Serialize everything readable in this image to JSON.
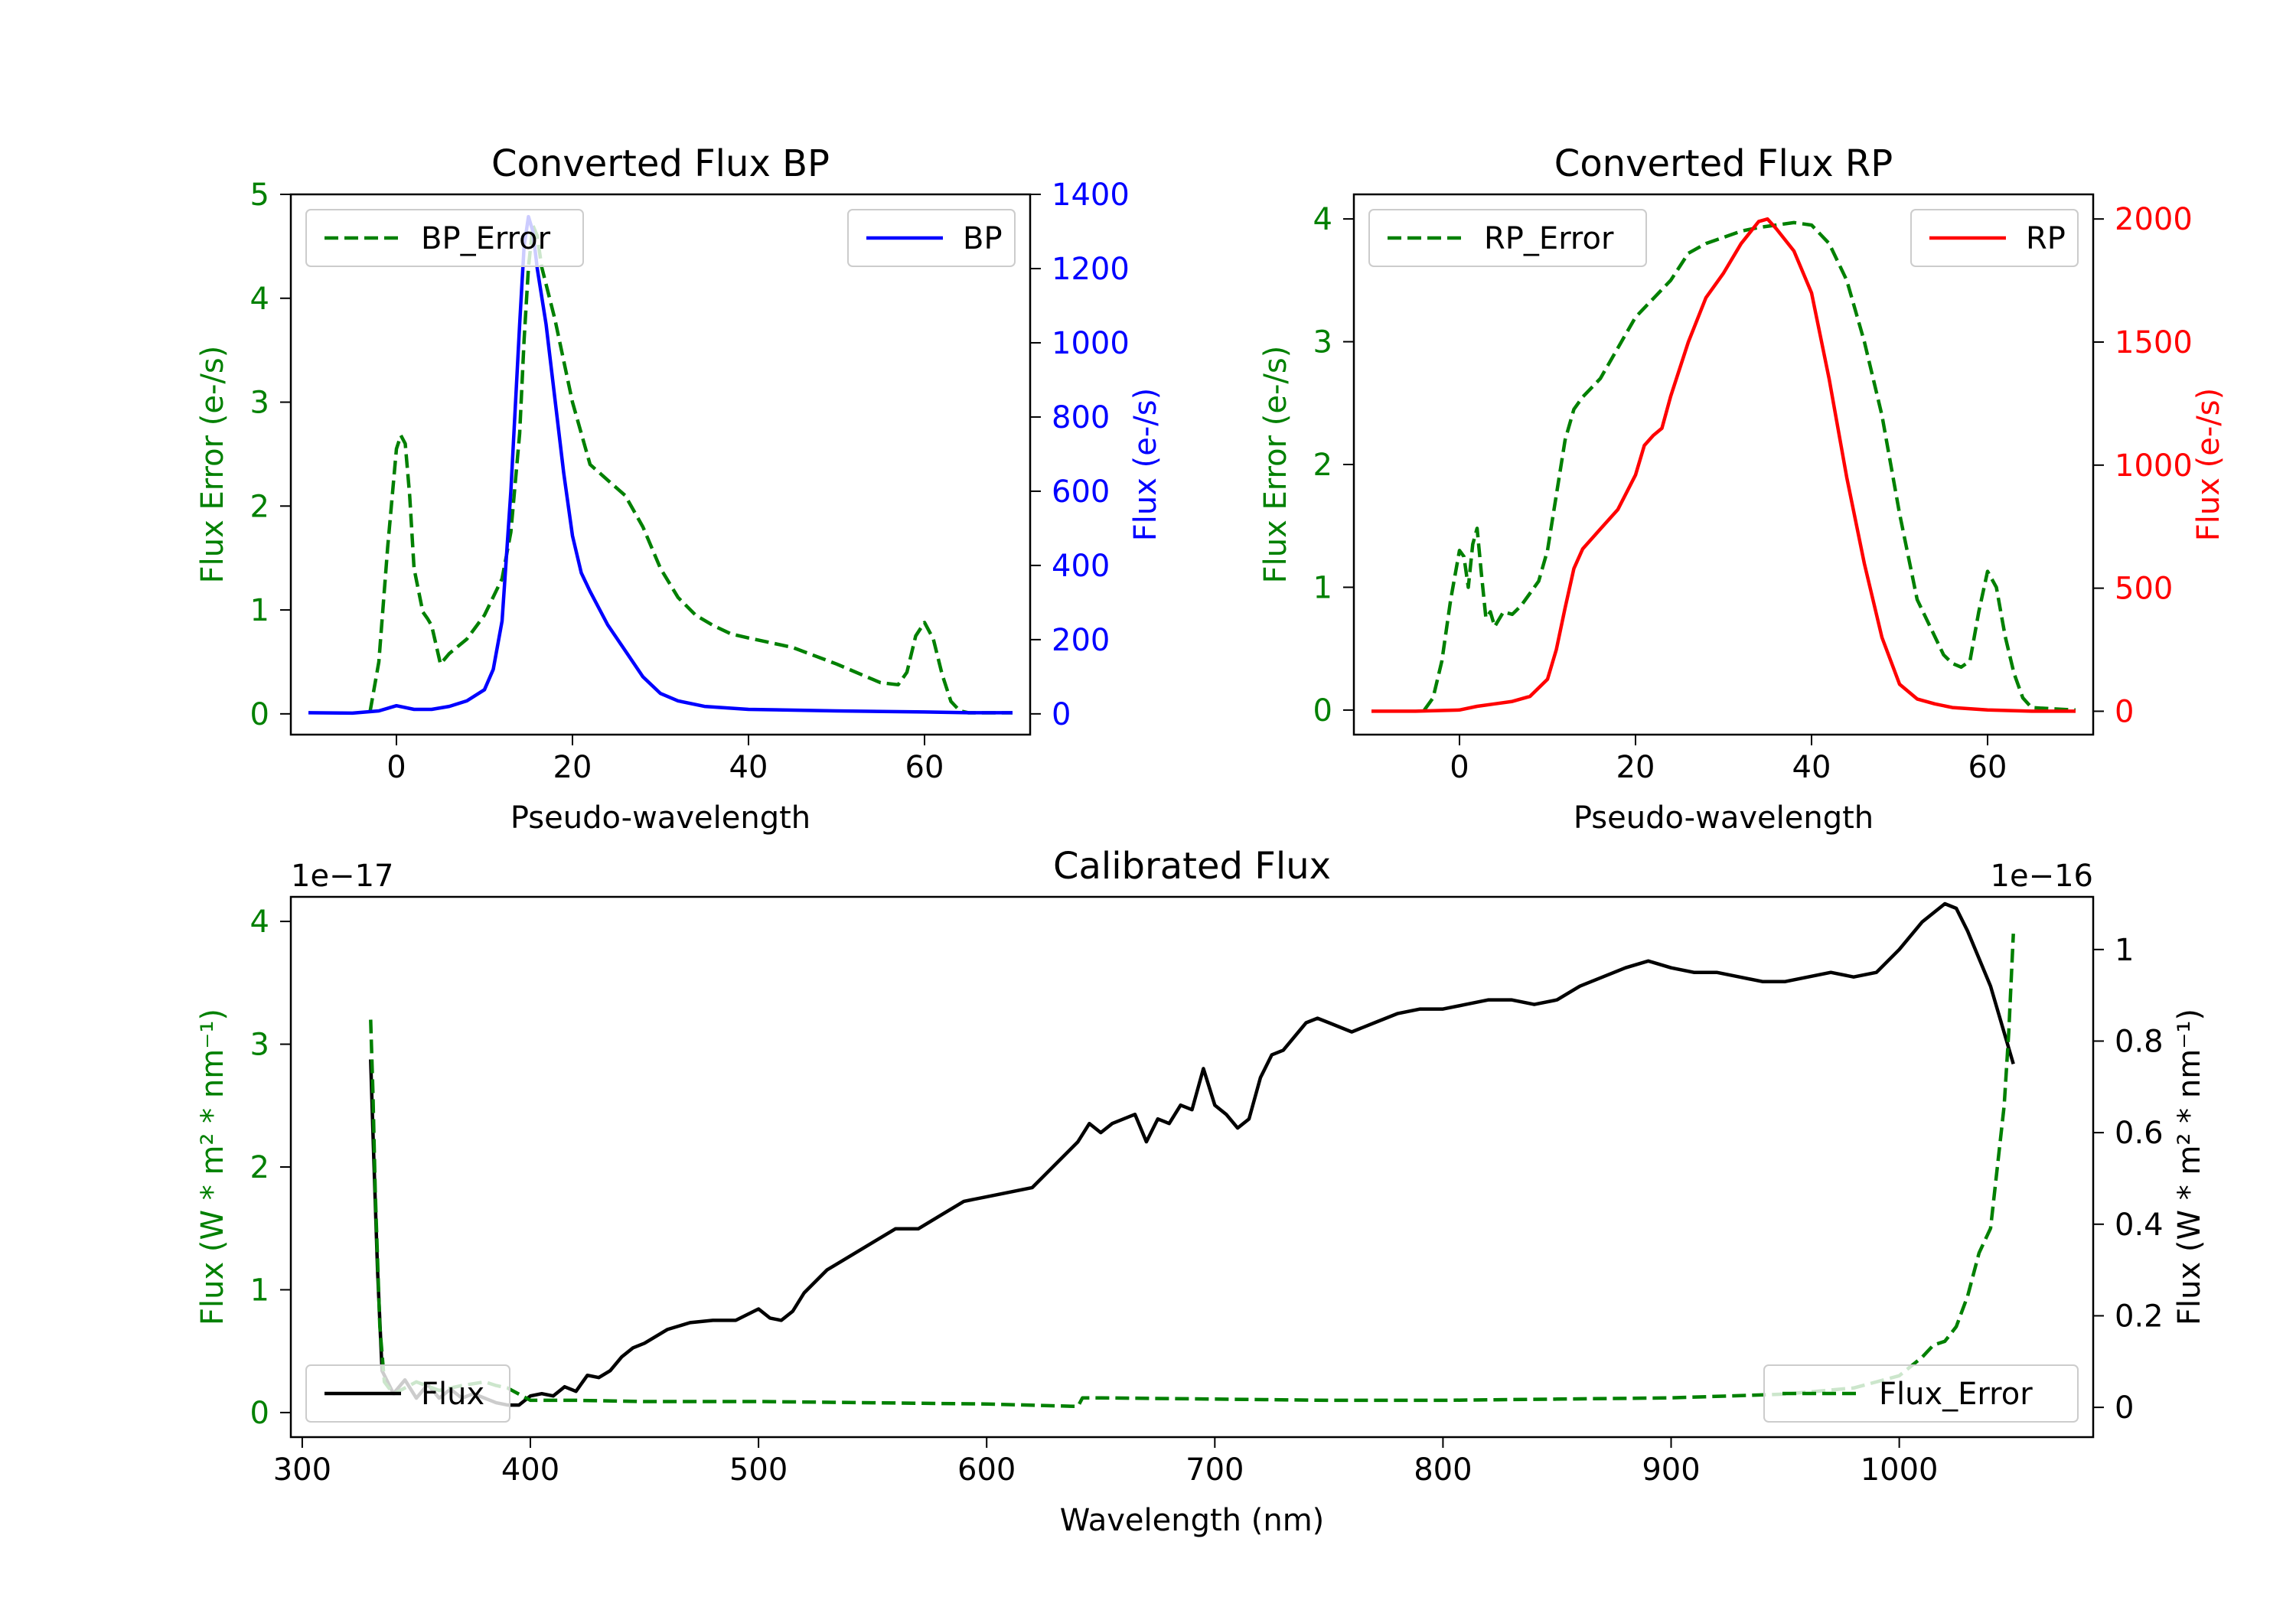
{
  "colors": {
    "green": "#008000",
    "blue": "#0000ff",
    "red": "#ff0000",
    "black": "#000000"
  },
  "chart_data": [
    {
      "type": "line",
      "title": "Converted Flux BP",
      "xlabel": "Pseudo-wavelength",
      "xlim": [
        -12,
        72
      ],
      "xticks": [
        0,
        20,
        40,
        60
      ],
      "left_axis": {
        "label": "Flux Error (e-/s)",
        "lim": [
          -0.2,
          5.0
        ],
        "ticks": [
          0,
          1,
          2,
          3,
          4,
          5
        ],
        "color": "#008000"
      },
      "right_axis": {
        "label": "Flux (e-/s)",
        "lim": [
          -56,
          1400
        ],
        "ticks": [
          0,
          200,
          400,
          600,
          800,
          1000,
          1200,
          1400
        ],
        "color": "#0000ff"
      },
      "legend_left": "BP_Error",
      "legend_right": "BP",
      "series": [
        {
          "name": "BP_Error",
          "axis": "left",
          "style": "dashed",
          "color": "#008000",
          "x": [
            -3,
            -2,
            -1,
            0,
            0.5,
            1,
            1.5,
            2,
            3,
            3.5,
            4,
            5,
            6,
            8,
            10,
            12,
            13,
            14,
            14.5,
            15,
            15.5,
            16,
            16.5,
            18,
            20,
            22,
            24,
            26,
            28,
            30,
            32,
            34,
            36,
            38,
            40,
            45,
            50,
            55,
            57,
            58,
            59,
            60,
            61,
            62,
            63,
            64,
            65,
            70
          ],
          "y": [
            0.02,
            0.5,
            1.6,
            2.55,
            2.68,
            2.6,
            2.1,
            1.4,
            0.98,
            0.92,
            0.85,
            0.48,
            0.58,
            0.72,
            0.95,
            1.3,
            1.75,
            2.7,
            3.6,
            4.3,
            4.7,
            4.6,
            4.3,
            3.8,
            3.0,
            2.4,
            2.25,
            2.1,
            1.8,
            1.4,
            1.12,
            0.95,
            0.85,
            0.77,
            0.73,
            0.64,
            0.48,
            0.3,
            0.28,
            0.4,
            0.75,
            0.88,
            0.72,
            0.38,
            0.12,
            0.03,
            0.01,
            0.01
          ]
        },
        {
          "name": "BP",
          "axis": "right",
          "style": "solid",
          "color": "#0000ff",
          "x": [
            -10,
            -5,
            -2,
            0,
            2,
            4,
            6,
            8,
            10,
            11,
            12,
            13,
            14,
            14.5,
            15,
            15.5,
            16,
            17,
            18,
            19,
            20,
            21,
            22,
            24,
            26,
            28,
            30,
            32,
            35,
            40,
            50,
            60,
            65,
            70
          ],
          "y": [
            3,
            2,
            8,
            22,
            12,
            12,
            20,
            35,
            65,
            120,
            250,
            600,
            1050,
            1260,
            1340,
            1300,
            1200,
            1050,
            850,
            650,
            480,
            380,
            330,
            240,
            170,
            100,
            55,
            35,
            20,
            12,
            8,
            5,
            3,
            3
          ]
        }
      ]
    },
    {
      "type": "line",
      "title": "Converted Flux RP",
      "xlabel": "Pseudo-wavelength",
      "xlim": [
        -12,
        72
      ],
      "xticks": [
        0,
        20,
        40,
        60
      ],
      "left_axis": {
        "label": "Flux Error (e-/s)",
        "lim": [
          -0.2,
          4.2
        ],
        "ticks": [
          0,
          1,
          2,
          3,
          4
        ],
        "color": "#008000"
      },
      "right_axis": {
        "label": "Flux (e-/s)",
        "lim": [
          -95,
          2100
        ],
        "ticks": [
          0,
          500,
          1000,
          1500,
          2000
        ],
        "color": "#ff0000"
      },
      "legend_left": "RP_Error",
      "legend_right": "RP",
      "series": [
        {
          "name": "RP_Error",
          "axis": "left",
          "style": "dashed",
          "color": "#008000",
          "x": [
            -4,
            -3,
            -2,
            -1,
            0,
            0.5,
            1,
            1.5,
            2,
            2.5,
            3,
            3.5,
            4,
            5,
            6,
            7,
            8,
            9,
            10,
            11,
            12,
            13,
            14,
            16,
            18,
            20,
            22,
            24,
            26,
            28,
            30,
            32,
            34,
            36,
            38,
            40,
            42,
            44,
            46,
            48,
            50,
            52,
            54,
            55,
            56,
            57,
            58,
            59,
            60,
            61,
            62,
            63,
            64,
            65,
            70
          ],
          "y": [
            0,
            0.1,
            0.4,
            0.9,
            1.3,
            1.25,
            1.0,
            1.35,
            1.48,
            1.1,
            0.75,
            0.8,
            0.68,
            0.8,
            0.78,
            0.85,
            0.95,
            1.05,
            1.3,
            1.75,
            2.2,
            2.45,
            2.55,
            2.7,
            2.95,
            3.2,
            3.35,
            3.5,
            3.72,
            3.8,
            3.85,
            3.9,
            3.93,
            3.95,
            3.97,
            3.95,
            3.8,
            3.5,
            3.0,
            2.4,
            1.6,
            0.9,
            0.6,
            0.45,
            0.38,
            0.35,
            0.4,
            0.8,
            1.13,
            1.0,
            0.6,
            0.3,
            0.1,
            0.02,
            0
          ]
        },
        {
          "name": "RP",
          "axis": "right",
          "style": "solid",
          "color": "#ff0000",
          "x": [
            -10,
            -5,
            0,
            2,
            4,
            6,
            8,
            10,
            11,
            12,
            13,
            14,
            16,
            18,
            20,
            21,
            22,
            23,
            24,
            26,
            28,
            30,
            32,
            34,
            35,
            36,
            38,
            40,
            42,
            44,
            46,
            48,
            50,
            52,
            54,
            56,
            60,
            65,
            70
          ],
          "y": [
            0,
            0,
            5,
            20,
            30,
            40,
            60,
            130,
            250,
            420,
            580,
            660,
            740,
            820,
            960,
            1080,
            1120,
            1150,
            1280,
            1500,
            1680,
            1780,
            1900,
            1990,
            2000,
            1960,
            1870,
            1700,
            1350,
            950,
            600,
            300,
            110,
            50,
            30,
            15,
            5,
            0,
            0
          ]
        }
      ]
    },
    {
      "type": "line",
      "title": "Calibrated Flux",
      "xlabel": "Wavelength (nm)",
      "xlim": [
        295,
        1085
      ],
      "xticks": [
        300,
        400,
        500,
        600,
        700,
        800,
        900,
        1000
      ],
      "left_axis": {
        "label": "Flux (W * m² * nm⁻¹)",
        "exponent": "1e−17",
        "lim": [
          -0.2,
          4.2
        ],
        "ticks": [
          0,
          1,
          2,
          3,
          4
        ],
        "color": "#008000"
      },
      "right_axis": {
        "label": "Flux (W * m² * nm⁻¹)",
        "exponent": "1e−16",
        "lim": [
          -0.065,
          1.115
        ],
        "ticks": [
          0.0,
          0.2,
          0.4,
          0.6,
          0.8,
          1.0
        ],
        "color": "#000000"
      },
      "legend_left": "Flux",
      "legend_right": "Flux_Error",
      "series": [
        {
          "name": "Flux",
          "axis": "right",
          "style": "solid",
          "color": "#000000",
          "x": [
            330,
            331,
            333,
            335,
            340,
            345,
            350,
            355,
            360,
            365,
            370,
            375,
            380,
            385,
            390,
            395,
            400,
            405,
            410,
            415,
            420,
            425,
            430,
            435,
            440,
            445,
            450,
            460,
            470,
            480,
            490,
            500,
            505,
            510,
            515,
            520,
            530,
            540,
            550,
            560,
            570,
            580,
            590,
            600,
            610,
            620,
            630,
            640,
            645,
            650,
            655,
            660,
            665,
            670,
            675,
            680,
            685,
            690,
            695,
            700,
            705,
            710,
            715,
            720,
            725,
            730,
            740,
            745,
            750,
            760,
            770,
            780,
            790,
            800,
            810,
            820,
            830,
            840,
            850,
            860,
            870,
            880,
            890,
            900,
            910,
            920,
            930,
            940,
            950,
            960,
            970,
            980,
            990,
            1000,
            1010,
            1020,
            1025,
            1030,
            1040,
            1050
          ],
          "y": [
            0.76,
            0.6,
            0.3,
            0.08,
            0.03,
            0.06,
            0.02,
            0.05,
            0.02,
            0.04,
            0.02,
            0.03,
            0.02,
            0.01,
            0.005,
            0.005,
            0.025,
            0.03,
            0.025,
            0.045,
            0.035,
            0.07,
            0.065,
            0.08,
            0.11,
            0.13,
            0.14,
            0.17,
            0.185,
            0.19,
            0.19,
            0.215,
            0.195,
            0.19,
            0.21,
            0.25,
            0.3,
            0.33,
            0.36,
            0.39,
            0.39,
            0.42,
            0.45,
            0.46,
            0.47,
            0.48,
            0.53,
            0.58,
            0.62,
            0.6,
            0.62,
            0.63,
            0.64,
            0.58,
            0.63,
            0.62,
            0.66,
            0.65,
            0.74,
            0.66,
            0.64,
            0.61,
            0.63,
            0.72,
            0.77,
            0.78,
            0.84,
            0.85,
            0.84,
            0.82,
            0.84,
            0.86,
            0.87,
            0.87,
            0.88,
            0.89,
            0.89,
            0.88,
            0.89,
            0.92,
            0.94,
            0.96,
            0.975,
            0.96,
            0.95,
            0.95,
            0.94,
            0.93,
            0.93,
            0.94,
            0.95,
            0.94,
            0.95,
            1.0,
            1.06,
            1.1,
            1.09,
            1.04,
            0.92,
            0.75
          ]
        },
        {
          "name": "Flux_Error",
          "axis": "left",
          "style": "dashed",
          "color": "#008000",
          "x": [
            330,
            331,
            332,
            334,
            336,
            340,
            350,
            360,
            370,
            380,
            385,
            390,
            400,
            420,
            450,
            500,
            550,
            600,
            640,
            642,
            650,
            700,
            750,
            800,
            850,
            900,
            950,
            980,
            1000,
            1010,
            1015,
            1020,
            1025,
            1030,
            1035,
            1040,
            1043,
            1046,
            1048,
            1050
          ],
          "y": [
            3.2,
            2.6,
            1.8,
            0.7,
            0.25,
            0.15,
            0.25,
            0.18,
            0.22,
            0.25,
            0.22,
            0.2,
            0.1,
            0.1,
            0.09,
            0.09,
            0.08,
            0.07,
            0.05,
            0.12,
            0.12,
            0.11,
            0.1,
            0.1,
            0.11,
            0.12,
            0.15,
            0.2,
            0.3,
            0.45,
            0.55,
            0.58,
            0.7,
            0.95,
            1.3,
            1.5,
            2.0,
            2.5,
            3.1,
            3.9
          ]
        }
      ]
    }
  ]
}
